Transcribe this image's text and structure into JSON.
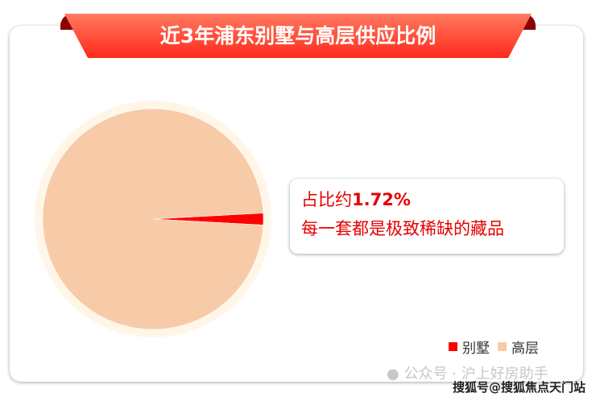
{
  "title": "近3年浦东别墅与高层供应比例",
  "callout": {
    "prefix": "占比约",
    "value": "1.72%",
    "line2": "每一套都是极致稀缺的藏品"
  },
  "chart_data": {
    "type": "pie",
    "title": "近3年浦东别墅与高层供应比例",
    "categories": [
      "别墅",
      "高层"
    ],
    "values": [
      1.72,
      98.28
    ],
    "colors": [
      "#ff0000",
      "#f7cba8"
    ],
    "legend": "bottom-right"
  },
  "watermark": {
    "wechat": "公众号 · 沪上好房助手",
    "sohu": "搜狐号@搜狐焦点天门站"
  }
}
